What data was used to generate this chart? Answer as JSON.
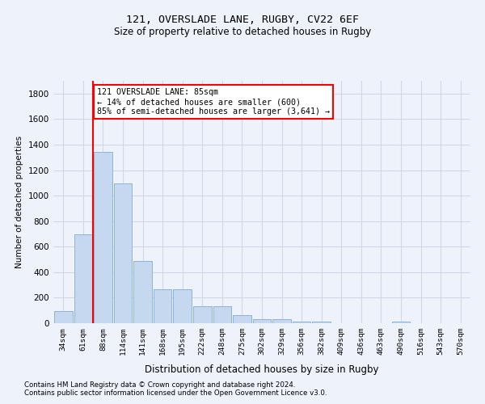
{
  "title1": "121, OVERSLADE LANE, RUGBY, CV22 6EF",
  "title2": "Size of property relative to detached houses in Rugby",
  "xlabel": "Distribution of detached houses by size in Rugby",
  "ylabel": "Number of detached properties",
  "categories": [
    "34sqm",
    "61sqm",
    "88sqm",
    "114sqm",
    "141sqm",
    "168sqm",
    "195sqm",
    "222sqm",
    "248sqm",
    "275sqm",
    "302sqm",
    "329sqm",
    "356sqm",
    "382sqm",
    "409sqm",
    "436sqm",
    "463sqm",
    "490sqm",
    "516sqm",
    "543sqm",
    "570sqm"
  ],
  "values": [
    95,
    695,
    1340,
    1095,
    490,
    265,
    265,
    130,
    130,
    65,
    30,
    30,
    15,
    15,
    0,
    0,
    0,
    15,
    0,
    0,
    0
  ],
  "bar_color": "#c5d8f0",
  "bar_edge_color": "#8ab4d8",
  "grid_color": "#d0d8e8",
  "vline_color": "red",
  "annotation_text": "121 OVERSLADE LANE: 85sqm\n← 14% of detached houses are smaller (600)\n85% of semi-detached houses are larger (3,641) →",
  "annotation_box_color": "white",
  "annotation_box_edge": "red",
  "ylim": [
    0,
    1900
  ],
  "yticks": [
    0,
    200,
    400,
    600,
    800,
    1000,
    1200,
    1400,
    1600,
    1800
  ],
  "footnote1": "Contains HM Land Registry data © Crown copyright and database right 2024.",
  "footnote2": "Contains public sector information licensed under the Open Government Licence v3.0.",
  "bg_color": "#eef2fb"
}
